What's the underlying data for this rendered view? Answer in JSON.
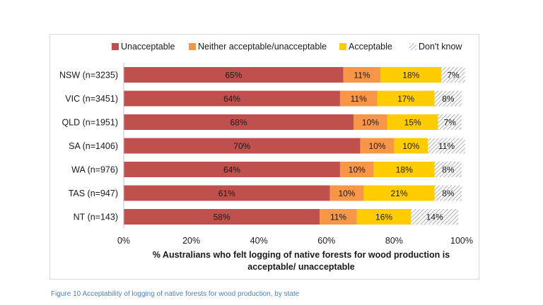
{
  "header": {
    "top_fragment": ""
  },
  "figure": {
    "caption": "Figure 10 Acceptability of logging of native forests for wood production,  by state"
  },
  "chart_data": {
    "type": "bar",
    "orientation": "horizontal",
    "stacked": true,
    "categories": [
      "NSW (n=3235)",
      "VIC (n=3451)",
      "QLD (n=1951)",
      "SA (n=1406)",
      "WA (n=976)",
      "TAS (n=947)",
      "NT (n=143)"
    ],
    "series": [
      {
        "name": "Unacceptable",
        "color": "#c0504d",
        "pattern": "solid",
        "values": [
          65,
          64,
          68,
          70,
          64,
          61,
          58
        ],
        "labels": [
          "65%",
          "64%",
          "68%",
          "70%",
          "64%",
          "61%",
          "58%"
        ]
      },
      {
        "name": "Neither acceptable/unacceptable",
        "color": "#f79646",
        "pattern": "solid",
        "values": [
          11,
          11,
          10,
          10,
          10,
          10,
          11
        ],
        "labels": [
          "11%",
          "11%",
          "10%",
          "10%",
          "10%",
          "10%",
          "11%"
        ]
      },
      {
        "name": "Acceptable",
        "color": "#ffcc00",
        "pattern": "solid",
        "values": [
          18,
          17,
          15,
          10,
          18,
          21,
          16
        ],
        "labels": [
          "18%",
          "17%",
          "15%",
          "10%",
          "18%",
          "21%",
          "16%"
        ]
      },
      {
        "name": "Don't know",
        "color": "#bfbfbf",
        "pattern": "hatch",
        "values": [
          7,
          8,
          7,
          11,
          8,
          8,
          14
        ],
        "labels": [
          "7%",
          "8%",
          "7%",
          "11%",
          "8%",
          "8%",
          "14%"
        ]
      }
    ],
    "xlim": [
      0,
      100
    ],
    "xticks": [
      "0%",
      "20%",
      "40%",
      "60%",
      "80%",
      "100%"
    ],
    "xlabel_lines": [
      "% Australians who felt logging of native forests for wood production is",
      "acceptable/ unacceptable"
    ],
    "legend_position": "top",
    "grid": false
  }
}
